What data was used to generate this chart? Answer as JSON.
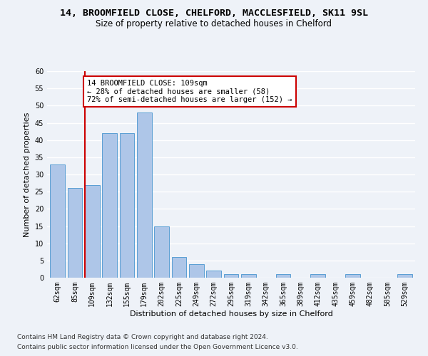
{
  "title": "14, BROOMFIELD CLOSE, CHELFORD, MACCLESFIELD, SK11 9SL",
  "subtitle": "Size of property relative to detached houses in Chelford",
  "xlabel": "Distribution of detached houses by size in Chelford",
  "ylabel": "Number of detached properties",
  "footnote1": "Contains HM Land Registry data © Crown copyright and database right 2024.",
  "footnote2": "Contains public sector information licensed under the Open Government Licence v3.0.",
  "bar_labels": [
    "62sqm",
    "85sqm",
    "109sqm",
    "132sqm",
    "155sqm",
    "179sqm",
    "202sqm",
    "225sqm",
    "249sqm",
    "272sqm",
    "295sqm",
    "319sqm",
    "342sqm",
    "365sqm",
    "389sqm",
    "412sqm",
    "435sqm",
    "459sqm",
    "482sqm",
    "505sqm",
    "529sqm"
  ],
  "bar_values": [
    33,
    26,
    27,
    42,
    42,
    48,
    15,
    6,
    4,
    2,
    1,
    1,
    0,
    1,
    0,
    1,
    0,
    1,
    0,
    0,
    1
  ],
  "bar_color": "#aec6e8",
  "bar_edge_color": "#5a9fd4",
  "highlight_index": 2,
  "highlight_color": "#cc0000",
  "annotation_line1": "14 BROOMFIELD CLOSE: 109sqm",
  "annotation_line2": "← 28% of detached houses are smaller (58)",
  "annotation_line3": "72% of semi-detached houses are larger (152) →",
  "annotation_box_color": "#ffffff",
  "annotation_box_edge": "#cc0000",
  "ylim": [
    0,
    60
  ],
  "yticks": [
    0,
    5,
    10,
    15,
    20,
    25,
    30,
    35,
    40,
    45,
    50,
    55,
    60
  ],
  "background_color": "#eef2f8",
  "grid_color": "#ffffff",
  "title_fontsize": 9.5,
  "subtitle_fontsize": 8.5,
  "xlabel_fontsize": 8,
  "ylabel_fontsize": 8,
  "tick_fontsize": 7,
  "annotation_fontsize": 7.5,
  "footnote_fontsize": 6.5
}
